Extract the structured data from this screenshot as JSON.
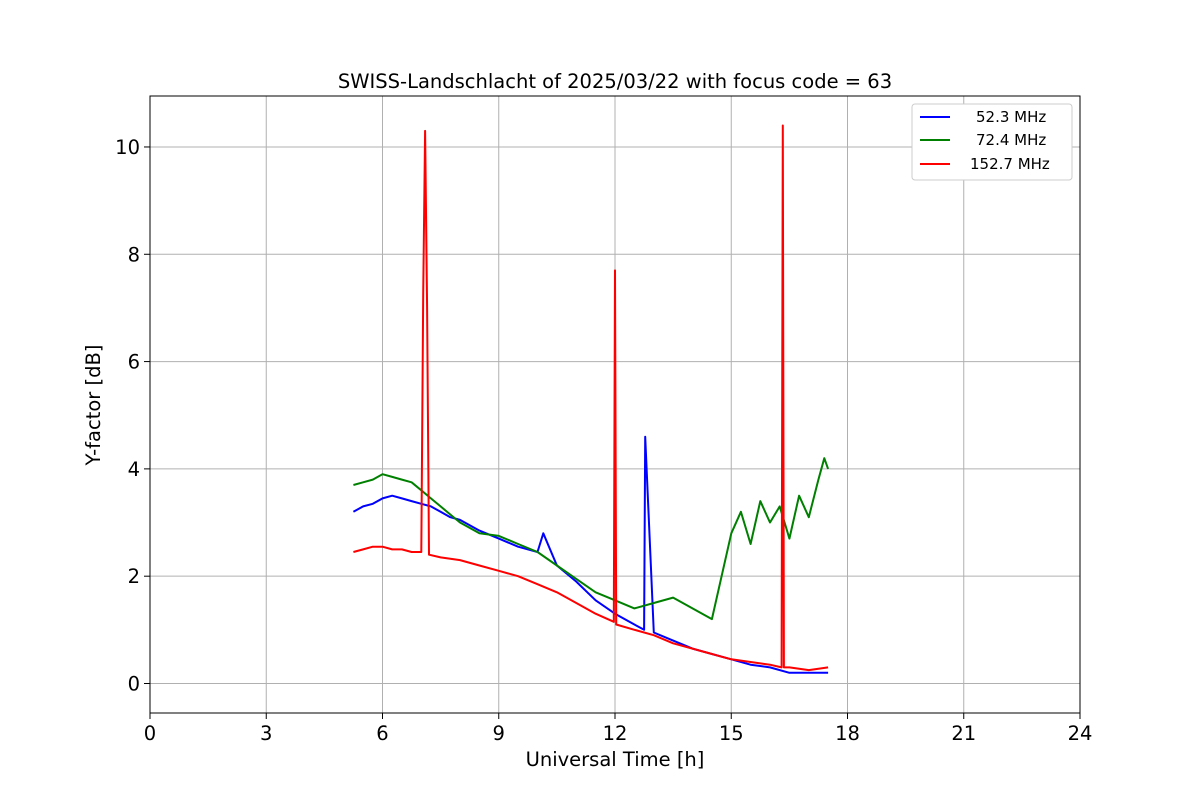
{
  "chart_data": {
    "type": "line",
    "title": "SWISS-Landschlacht of 2025/03/22 with focus code = 63",
    "xlabel": "Universal Time [h]",
    "ylabel": "Y-factor [dB]",
    "xlim": [
      0,
      24
    ],
    "ylim": [
      -0.55,
      10.95
    ],
    "x_ticks": [
      0,
      3,
      6,
      9,
      12,
      15,
      18,
      21,
      24
    ],
    "y_ticks": [
      0,
      2,
      4,
      6,
      8,
      10
    ],
    "grid": true,
    "legend_position": "top-right",
    "series": [
      {
        "name": "52.3 MHz",
        "color": "#0000ff",
        "x": [
          5.25,
          5.5,
          5.75,
          6.0,
          6.25,
          6.5,
          6.75,
          7.0,
          7.25,
          7.5,
          7.75,
          8.0,
          8.5,
          9.0,
          9.5,
          10.0,
          10.15,
          10.5,
          11.0,
          11.5,
          12.0,
          12.5,
          12.75,
          12.78,
          13.0,
          13.5,
          14.0,
          14.5,
          15.0,
          15.5,
          16.0,
          16.5,
          17.0,
          17.5
        ],
        "y": [
          3.2,
          3.3,
          3.35,
          3.45,
          3.5,
          3.45,
          3.4,
          3.35,
          3.3,
          3.2,
          3.1,
          3.05,
          2.85,
          2.7,
          2.55,
          2.45,
          2.8,
          2.2,
          1.9,
          1.55,
          1.3,
          1.1,
          1.0,
          4.6,
          0.95,
          0.8,
          0.65,
          0.55,
          0.45,
          0.35,
          0.3,
          0.2,
          0.2,
          0.2
        ]
      },
      {
        "name": "72.4 MHz",
        "color": "#008000",
        "x": [
          5.25,
          5.5,
          5.75,
          6.0,
          6.25,
          6.5,
          6.75,
          7.0,
          7.25,
          7.5,
          7.75,
          8.0,
          8.5,
          9.0,
          9.5,
          10.0,
          10.5,
          11.0,
          11.5,
          12.0,
          12.5,
          13.0,
          13.5,
          14.0,
          14.5,
          15.0,
          15.25,
          15.5,
          15.75,
          16.0,
          16.25,
          16.5,
          16.75,
          17.0,
          17.25,
          17.4,
          17.5
        ],
        "y": [
          3.7,
          3.75,
          3.8,
          3.9,
          3.85,
          3.8,
          3.75,
          3.6,
          3.45,
          3.3,
          3.15,
          3.0,
          2.8,
          2.75,
          2.6,
          2.45,
          2.2,
          1.95,
          1.7,
          1.55,
          1.4,
          1.5,
          1.6,
          1.4,
          1.2,
          2.8,
          3.2,
          2.6,
          3.4,
          3.0,
          3.3,
          2.7,
          3.5,
          3.1,
          3.8,
          4.2,
          4.0
        ]
      },
      {
        "name": "152.7 MHz",
        "color": "#ff0000",
        "x": [
          5.25,
          5.5,
          5.75,
          6.0,
          6.25,
          6.5,
          6.75,
          7.0,
          7.05,
          7.1,
          7.15,
          7.2,
          7.5,
          8.0,
          8.5,
          9.0,
          9.5,
          10.0,
          10.5,
          11.0,
          11.5,
          11.97,
          12.0,
          12.03,
          12.5,
          13.0,
          13.5,
          14.0,
          14.5,
          15.0,
          15.5,
          16.0,
          16.3,
          16.33,
          16.36,
          16.5,
          17.0,
          17.5
        ],
        "y": [
          2.45,
          2.5,
          2.55,
          2.55,
          2.5,
          2.5,
          2.45,
          2.45,
          7.25,
          10.3,
          7.0,
          2.4,
          2.35,
          2.3,
          2.2,
          2.1,
          2.0,
          1.85,
          1.7,
          1.5,
          1.3,
          1.15,
          7.7,
          1.1,
          1.0,
          0.9,
          0.75,
          0.65,
          0.55,
          0.45,
          0.4,
          0.35,
          0.3,
          10.4,
          0.3,
          0.3,
          0.25,
          0.3
        ]
      }
    ]
  }
}
